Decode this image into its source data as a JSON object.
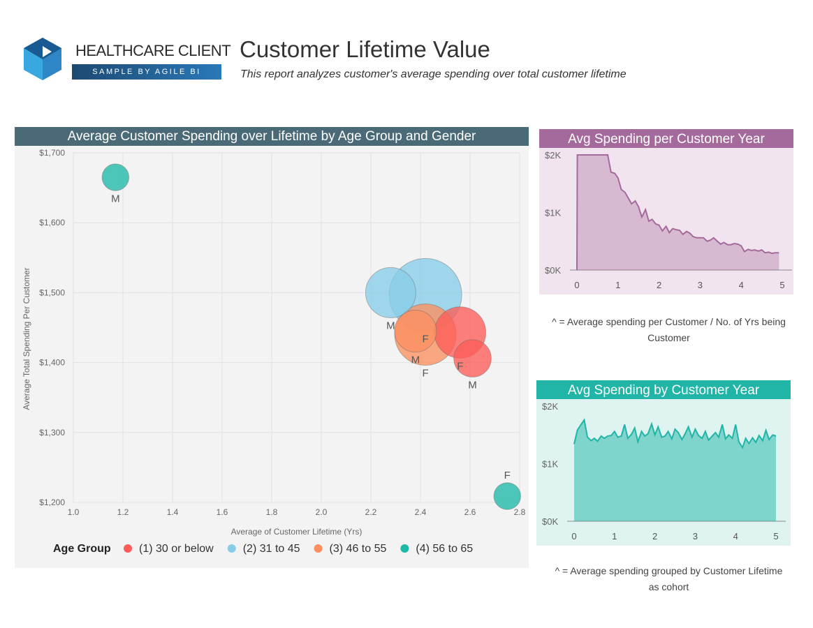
{
  "brand": {
    "name": "HEALTHCARE CLIENT",
    "tagline": "SAMPLE BY AGILE BI"
  },
  "header": {
    "title": "Customer Lifetime Value",
    "subtitle": "This report analyzes customer's average spending over total customer lifetime"
  },
  "colors": {
    "age1": "#fd5c58",
    "age2": "#88cde8",
    "age3": "#fb8f5f",
    "age4": "#1cb8a8",
    "purple": "#a56a9c",
    "teal": "#20b5a6"
  },
  "chart_data": [
    {
      "type": "scatter",
      "title": "Average Customer Spending over Lifetime by Age Group and Gender",
      "xlabel": "Average of Customer Lifetime (Yrs)",
      "ylabel": "Average Total Spending Per Customer",
      "xlim": [
        1.0,
        2.8
      ],
      "ylim": [
        1200,
        1700
      ],
      "x_ticks": [
        "1.0",
        "1.2",
        "1.4",
        "1.6",
        "1.8",
        "2.0",
        "2.2",
        "2.4",
        "2.6",
        "2.8"
      ],
      "y_ticks": [
        "$1,200",
        "$1,300",
        "$1,400",
        "$1,500",
        "$1,600",
        "$1,700"
      ],
      "grid": true,
      "legend_title": "Age Group",
      "legend_position": "bottom",
      "series": [
        {
          "name": "(1) 30 or below",
          "color": "#fd5c58",
          "points": [
            {
              "x": 2.56,
              "y": 1443,
              "label": "F",
              "size": 0.62
            },
            {
              "x": 2.61,
              "y": 1406,
              "label": "M",
              "size": 0.37
            }
          ]
        },
        {
          "name": "(2) 31 to 45",
          "color": "#88cde8",
          "points": [
            {
              "x": 2.28,
              "y": 1500,
              "label": "M",
              "size": 0.6
            },
            {
              "x": 2.42,
              "y": 1497,
              "label": "F",
              "size": 1.0
            }
          ]
        },
        {
          "name": "(3) 46 to 55",
          "color": "#fb8f5f",
          "points": [
            {
              "x": 2.42,
              "y": 1440,
              "label": "F",
              "size": 0.8
            },
            {
              "x": 2.38,
              "y": 1445,
              "label": "M",
              "size": 0.45
            }
          ]
        },
        {
          "name": "(4) 56 to 65",
          "color": "#1cb8a8",
          "points": [
            {
              "x": 1.17,
              "y": 1665,
              "label": "M",
              "size": 0.18
            },
            {
              "x": 2.75,
              "y": 1209,
              "label": "F",
              "size": 0.18
            }
          ]
        }
      ]
    },
    {
      "type": "area",
      "title": "Avg Spending per Customer Year",
      "y_ticks": [
        "$0K",
        "$1K",
        "$2K"
      ],
      "x_ticks": [
        "0",
        "1",
        "2",
        "3",
        "4",
        "5"
      ],
      "xlim": [
        0,
        5
      ],
      "ylim": [
        0,
        2000
      ],
      "color": "#a56a9c",
      "x": [
        0,
        0.01,
        0.08,
        0.17,
        0.25,
        0.33,
        0.42,
        0.5,
        0.58,
        0.67,
        0.75,
        0.83,
        0.92,
        1.0,
        1.08,
        1.17,
        1.25,
        1.33,
        1.42,
        1.5,
        1.58,
        1.67,
        1.75,
        1.83,
        1.92,
        2.0,
        2.08,
        2.17,
        2.25,
        2.33,
        2.42,
        2.5,
        2.58,
        2.67,
        2.75,
        2.83,
        2.92,
        3.0,
        3.08,
        3.17,
        3.25,
        3.33,
        3.42,
        3.5,
        3.58,
        3.67,
        3.75,
        3.83,
        3.92,
        4.0,
        4.08,
        4.17,
        4.25,
        4.33,
        4.42,
        4.5,
        4.58,
        4.67,
        4.75,
        4.83,
        4.92
      ],
      "values": [
        0,
        2000,
        2000,
        2000,
        2000,
        2000,
        2000,
        2000,
        2000,
        2000,
        2000,
        1700,
        1680,
        1600,
        1400,
        1350,
        1250,
        1150,
        1200,
        1100,
        920,
        1050,
        850,
        880,
        800,
        780,
        680,
        760,
        650,
        720,
        700,
        690,
        620,
        670,
        640,
        580,
        560,
        560,
        560,
        500,
        520,
        560,
        500,
        450,
        480,
        440,
        440,
        460,
        450,
        420,
        320,
        360,
        340,
        350,
        330,
        350,
        300,
        310,
        290,
        300,
        300
      ]
    },
    {
      "type": "area",
      "title": "Avg Spending by Customer Year",
      "y_ticks": [
        "$0K",
        "$1K",
        "$2K"
      ],
      "x_ticks": [
        "0",
        "1",
        "2",
        "3",
        "4",
        "5"
      ],
      "xlim": [
        0,
        5
      ],
      "ylim": [
        0,
        2000
      ],
      "color": "#20b5a6",
      "x": [
        0,
        0.08,
        0.17,
        0.25,
        0.33,
        0.42,
        0.5,
        0.58,
        0.67,
        0.75,
        0.83,
        0.92,
        1.0,
        1.08,
        1.17,
        1.25,
        1.33,
        1.42,
        1.5,
        1.58,
        1.67,
        1.75,
        1.83,
        1.92,
        2.0,
        2.08,
        2.17,
        2.25,
        2.33,
        2.42,
        2.5,
        2.58,
        2.67,
        2.75,
        2.83,
        2.92,
        3.0,
        3.08,
        3.17,
        3.25,
        3.33,
        3.42,
        3.5,
        3.58,
        3.67,
        3.75,
        3.83,
        3.92,
        4.0,
        4.08,
        4.17,
        4.25,
        4.33,
        4.42,
        4.5,
        4.58,
        4.67,
        4.75,
        4.83,
        4.92,
        5.0
      ],
      "values": [
        1340,
        1580,
        1680,
        1760,
        1460,
        1400,
        1440,
        1390,
        1480,
        1440,
        1480,
        1490,
        1560,
        1460,
        1480,
        1680,
        1440,
        1510,
        1620,
        1380,
        1560,
        1480,
        1520,
        1690,
        1500,
        1640,
        1460,
        1480,
        1560,
        1430,
        1600,
        1540,
        1420,
        1520,
        1640,
        1460,
        1600,
        1490,
        1440,
        1560,
        1410,
        1480,
        1540,
        1460,
        1680,
        1430,
        1500,
        1440,
        1680,
        1380,
        1280,
        1440,
        1350,
        1450,
        1370,
        1490,
        1400,
        1580,
        1420,
        1500,
        1480
      ]
    }
  ],
  "notes": {
    "per_year": "^ = Average spending per Customer / No. of Yrs being Customer",
    "by_year": "^ = Average spending grouped by Customer Lifetime as cohort"
  }
}
